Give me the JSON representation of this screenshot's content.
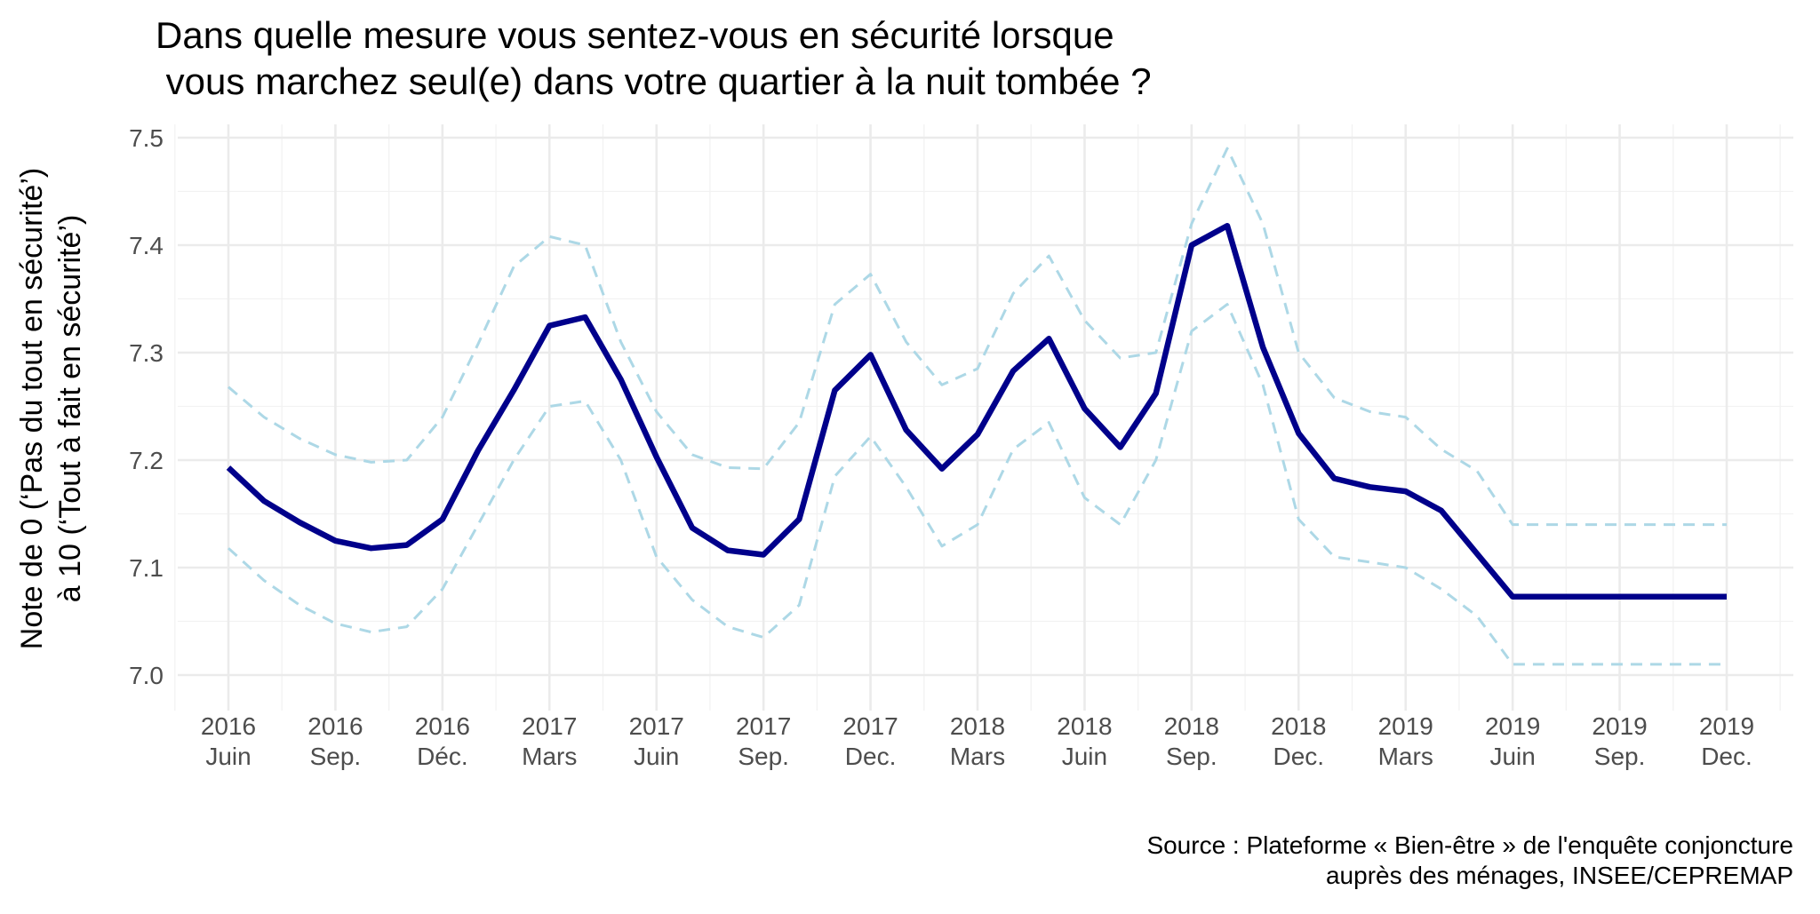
{
  "chart_data": {
    "type": "line",
    "title": [
      "Dans quelle mesure vous sentez-vous en sécurité lorsque",
      " vous marchez seul(e) dans votre quartier à la nuit tombée ?"
    ],
    "ylabel": [
      "Note de 0 (‘Pas du tout en sécurité’)",
      "à 10 (‘Tout à fait en sécurité’)"
    ],
    "xlabel": "",
    "caption": [
      "Source : Plateforme « Bien-être » de l'enquête conjoncture",
      "auprès des ménages, INSEE/CEPREMAP"
    ],
    "ylim": [
      6.98,
      7.52
    ],
    "y_ticks": [
      7.0,
      7.1,
      7.2,
      7.3,
      7.4,
      7.5
    ],
    "x_range": [
      0,
      43
    ],
    "x_ticks": [
      {
        "x": 0,
        "year": "2016",
        "month": "Juin"
      },
      {
        "x": 3,
        "year": "2016",
        "month": "Sep."
      },
      {
        "x": 6,
        "year": "2016",
        "month": "Déc."
      },
      {
        "x": 9,
        "year": "2017",
        "month": "Mars"
      },
      {
        "x": 12,
        "year": "2017",
        "month": "Juin"
      },
      {
        "x": 15,
        "year": "2017",
        "month": "Sep."
      },
      {
        "x": 18,
        "year": "2017",
        "month": "Dec."
      },
      {
        "x": 21,
        "year": "2018",
        "month": "Mars"
      },
      {
        "x": 24,
        "year": "2018",
        "month": "Juin"
      },
      {
        "x": 27,
        "year": "2018",
        "month": "Sep."
      },
      {
        "x": 30,
        "year": "2018",
        "month": "Dec."
      },
      {
        "x": 33,
        "year": "2019",
        "month": "Mars"
      },
      {
        "x": 36,
        "year": "2019",
        "month": "Juin"
      },
      {
        "x": 39,
        "year": "2019",
        "month": "Sep."
      },
      {
        "x": 42,
        "year": "2019",
        "month": "Dec."
      }
    ],
    "grid": true,
    "legend": "none",
    "series": [
      {
        "role": "estimate",
        "color": "#00008b",
        "style": "solid",
        "x": [
          0,
          1,
          2,
          3,
          4,
          5,
          6,
          7,
          8,
          9,
          10,
          11,
          12,
          13,
          14,
          15,
          16,
          17,
          18,
          19,
          20,
          21,
          22,
          23,
          24,
          25,
          26,
          27,
          28,
          29,
          30,
          31,
          32,
          33,
          34,
          35,
          36,
          37,
          38,
          39,
          40,
          41,
          42
        ],
        "values": [
          7.193,
          7.162,
          7.142,
          7.125,
          7.118,
          7.121,
          7.145,
          7.209,
          7.265,
          7.325,
          7.333,
          7.275,
          7.203,
          7.137,
          7.116,
          7.112,
          7.145,
          7.265,
          7.298,
          7.228,
          7.192,
          7.224,
          7.283,
          7.313,
          7.248,
          7.212,
          7.262,
          7.4,
          7.418,
          7.305,
          7.225,
          7.183,
          7.175,
          7.171,
          7.153,
          7.113,
          7.073,
          7.073,
          7.073,
          7.073,
          7.073,
          7.073,
          7.073
        ]
      },
      {
        "role": "upper-bound",
        "color": "#add8e6",
        "style": "dashed",
        "x": [
          0,
          1,
          2,
          3,
          4,
          5,
          6,
          7,
          8,
          9,
          10,
          11,
          12,
          13,
          14,
          15,
          16,
          17,
          18,
          19,
          20,
          21,
          22,
          23,
          24,
          25,
          26,
          27,
          28,
          29,
          30,
          31,
          32,
          33,
          34,
          35,
          36,
          37,
          38,
          39,
          40,
          41,
          42
        ],
        "values": [
          7.268,
          7.24,
          7.22,
          7.205,
          7.198,
          7.2,
          7.24,
          7.308,
          7.38,
          7.408,
          7.4,
          7.31,
          7.245,
          7.205,
          7.193,
          7.192,
          7.235,
          7.345,
          7.373,
          7.31,
          7.27,
          7.285,
          7.355,
          7.39,
          7.33,
          7.295,
          7.3,
          7.42,
          7.49,
          7.42,
          7.3,
          7.258,
          7.245,
          7.24,
          7.21,
          7.19,
          7.14,
          7.14,
          7.14,
          7.14,
          7.14,
          7.14,
          7.14
        ]
      },
      {
        "role": "lower-bound",
        "color": "#add8e6",
        "style": "dashed",
        "x": [
          0,
          1,
          2,
          3,
          4,
          5,
          6,
          7,
          8,
          9,
          10,
          11,
          12,
          13,
          14,
          15,
          16,
          17,
          18,
          19,
          20,
          21,
          22,
          23,
          24,
          25,
          26,
          27,
          28,
          29,
          30,
          31,
          32,
          33,
          34,
          35,
          36,
          37,
          38,
          39,
          40,
          41,
          42
        ],
        "values": [
          7.118,
          7.088,
          7.065,
          7.048,
          7.04,
          7.045,
          7.08,
          7.14,
          7.2,
          7.25,
          7.255,
          7.2,
          7.11,
          7.07,
          7.045,
          7.035,
          7.065,
          7.185,
          7.222,
          7.175,
          7.12,
          7.14,
          7.21,
          7.235,
          7.165,
          7.14,
          7.2,
          7.32,
          7.345,
          7.27,
          7.145,
          7.11,
          7.105,
          7.1,
          7.08,
          7.055,
          7.01,
          7.01,
          7.01,
          7.01,
          7.01,
          7.01,
          7.01
        ]
      }
    ]
  }
}
